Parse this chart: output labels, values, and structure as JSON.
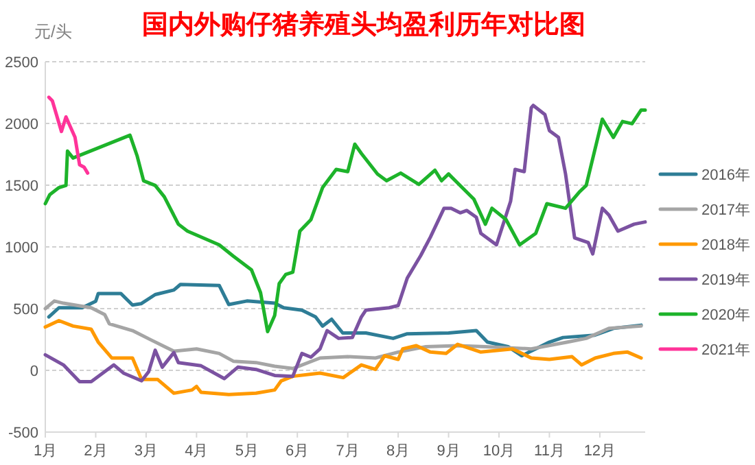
{
  "chart_data": {
    "type": "line",
    "title": "国内外购仔猪养殖头均盈利历年对比图",
    "ylabel": "元/头",
    "grid": "y",
    "legend": "right",
    "marker": "none",
    "line_style": "solid",
    "xlim": [
      1,
      12.9
    ],
    "ylim": [
      -500,
      2500
    ],
    "yticks": [
      -500,
      0,
      500,
      1000,
      1500,
      2000,
      2500
    ],
    "xticks": [
      {
        "value": 1,
        "label": "1月"
      },
      {
        "value": 2,
        "label": "2月"
      },
      {
        "value": 3,
        "label": "3月"
      },
      {
        "value": 4,
        "label": "4月"
      },
      {
        "value": 5,
        "label": "5月"
      },
      {
        "value": 6,
        "label": "6月"
      },
      {
        "value": 7,
        "label": "7月"
      },
      {
        "value": 8,
        "label": "8月"
      },
      {
        "value": 9,
        "label": "9月"
      },
      {
        "value": 10,
        "label": "10月"
      },
      {
        "value": 11,
        "label": "11月"
      },
      {
        "value": 12,
        "label": "12月"
      }
    ],
    "series": [
      {
        "name": "2016年",
        "color": "#2e7d96",
        "x": [
          1.07,
          1.27,
          1.73,
          2.0,
          2.05,
          2.5,
          2.73,
          2.9,
          3.18,
          3.55,
          3.68,
          4.45,
          4.64,
          5.0,
          5.55,
          5.73,
          6.09,
          6.36,
          6.5,
          6.68,
          6.9,
          7.36,
          7.9,
          8.18,
          9.0,
          9.55,
          9.77,
          10.18,
          10.45,
          11.0,
          11.27,
          11.9,
          12.27,
          12.82
        ],
        "values": [
          433,
          507,
          507,
          560,
          622,
          622,
          529,
          540,
          614,
          651,
          696,
          688,
          533,
          562,
          544,
          507,
          488,
          433,
          359,
          414,
          303,
          303,
          259,
          296,
          303,
          322,
          229,
          192,
          118,
          229,
          266,
          285,
          340,
          366
        ]
      },
      {
        "name": "2017年",
        "color": "#a5a5a5",
        "x": [
          1.0,
          1.18,
          1.36,
          1.91,
          2.18,
          2.27,
          2.73,
          3.09,
          3.55,
          4.0,
          4.45,
          4.73,
          5.18,
          5.55,
          5.91,
          6.45,
          7.0,
          7.55,
          8.0,
          8.55,
          9.18,
          9.73,
          10.64,
          11.36,
          11.73,
          12.18,
          12.82
        ],
        "values": [
          500,
          562,
          544,
          507,
          451,
          377,
          322,
          248,
          155,
          174,
          137,
          74,
          63,
          33,
          15,
          100,
          111,
          100,
          148,
          192,
          200,
          192,
          174,
          229,
          259,
          340,
          359
        ]
      },
      {
        "name": "2018年",
        "color": "#ff9900",
        "x": [
          1,
          1.27,
          1.55,
          1.91,
          2.05,
          2.32,
          2.73,
          2.91,
          3.23,
          3.55,
          3.91,
          4.0,
          4.09,
          4.64,
          5.18,
          5.55,
          5.68,
          5.91,
          6.45,
          6.91,
          7.27,
          7.55,
          7.73,
          8.0,
          8.09,
          8.36,
          8.64,
          8.95,
          9.18,
          9.64,
          10.27,
          10.64,
          11.0,
          11.45,
          11.64,
          11.91,
          12.27,
          12.55,
          12.82
        ],
        "values": [
          351,
          403,
          359,
          333,
          229,
          100,
          100,
          -74,
          -74,
          -185,
          -159,
          -130,
          -178,
          -196,
          -185,
          -159,
          -85,
          -48,
          -22,
          -59,
          44,
          7,
          118,
          89,
          174,
          200,
          148,
          137,
          211,
          148,
          174,
          100,
          89,
          111,
          44,
          100,
          137,
          148,
          100
        ]
      },
      {
        "name": "2019年",
        "color": "#7b52a1",
        "x": [
          1,
          1.36,
          1.68,
          1.91,
          2.36,
          2.55,
          2.91,
          3.05,
          3.18,
          3.32,
          3.55,
          3.64,
          4.09,
          4.55,
          4.82,
          5.18,
          5.55,
          5.91,
          6.09,
          6.27,
          6.45,
          6.59,
          6.82,
          7.09,
          7.27,
          7.36,
          7.82,
          8.0,
          8.18,
          8.45,
          8.64,
          8.91,
          9.05,
          9.23,
          9.36,
          9.55,
          9.64,
          9.95,
          10.23,
          10.32,
          10.5,
          10.64,
          10.68,
          10.91,
          11.0,
          11.18,
          11.32,
          11.5,
          11.77,
          11.86,
          12.05,
          12.18,
          12.36,
          12.68,
          12.9
        ],
        "values": [
          126,
          44,
          -92,
          -92,
          44,
          -22,
          -85,
          -11,
          163,
          26,
          144,
          63,
          37,
          -67,
          26,
          7,
          -41,
          -48,
          137,
          107,
          174,
          322,
          259,
          266,
          433,
          488,
          507,
          525,
          747,
          932,
          1080,
          1313,
          1313,
          1276,
          1295,
          1240,
          1110,
          1017,
          1369,
          1628,
          1610,
          2127,
          2146,
          2072,
          1942,
          1887,
          1591,
          1073,
          1036,
          943,
          1313,
          1258,
          1128,
          1184,
          1202
        ]
      },
      {
        "name": "2020年",
        "color": "#1db32a",
        "x": [
          1,
          1.09,
          1.27,
          1.41,
          1.44,
          1.55,
          2.68,
          2.82,
          2.95,
          3.18,
          3.36,
          3.64,
          3.82,
          4.45,
          4.73,
          5.09,
          5.27,
          5.41,
          5.55,
          5.64,
          5.77,
          5.91,
          6.05,
          6.27,
          6.5,
          6.77,
          7.0,
          7.14,
          7.27,
          7.59,
          7.77,
          8.05,
          8.41,
          8.73,
          8.86,
          9.0,
          9.27,
          9.5,
          9.73,
          9.86,
          10.14,
          10.41,
          10.73,
          10.95,
          11.32,
          11.59,
          11.73,
          12.05,
          12.27,
          12.45,
          12.64,
          12.82,
          12.9
        ],
        "values": [
          1350,
          1424,
          1480,
          1498,
          1776,
          1720,
          1905,
          1739,
          1535,
          1498,
          1406,
          1184,
          1128,
          1017,
          925,
          814,
          629,
          314,
          444,
          703,
          777,
          795,
          1128,
          1221,
          1480,
          1628,
          1610,
          1832,
          1757,
          1590,
          1536,
          1598,
          1506,
          1621,
          1536,
          1591,
          1480,
          1388,
          1184,
          1313,
          1221,
          1017,
          1110,
          1350,
          1313,
          1443,
          1498,
          2035,
          1887,
          2016,
          1998,
          2109,
          2109
        ]
      },
      {
        "name": "2021年",
        "color": "#ff3399",
        "x": [
          1.07,
          1.14,
          1.32,
          1.41,
          1.59,
          1.68,
          1.77,
          1.84
        ],
        "values": [
          2212,
          2183,
          1935,
          2053,
          1887,
          1665,
          1646,
          1598
        ]
      }
    ]
  }
}
